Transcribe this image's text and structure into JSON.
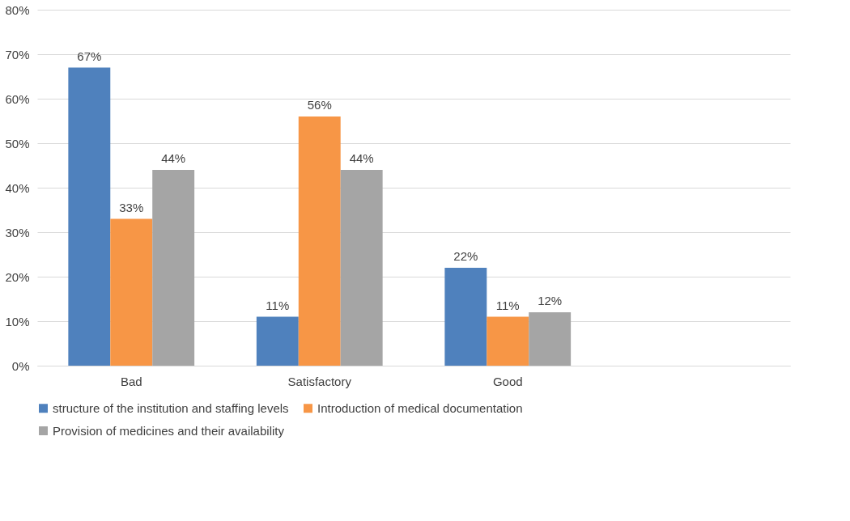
{
  "chart_data": {
    "type": "bar",
    "categories": [
      "Bad",
      "Satisfactory",
      "Good",
      null
    ],
    "series": [
      {
        "name": "structure of the institution and staffing levels",
        "color": "#4f81bd",
        "values": [
          67,
          11,
          22,
          null
        ],
        "value_labels": [
          "67%",
          "11%",
          "22%",
          null
        ]
      },
      {
        "name": "Introduction of medical documentation",
        "color": "#f79646",
        "values": [
          33,
          56,
          11,
          null
        ],
        "value_labels": [
          "33%",
          "56%",
          "11%",
          null
        ]
      },
      {
        "name": "Provision of medicines and their availability",
        "color": "#a5a5a5",
        "values": [
          44,
          44,
          12,
          null
        ],
        "value_labels": [
          "44%",
          "44%",
          "12%",
          null
        ]
      }
    ],
    "ylim": [
      0,
      80
    ],
    "yticks": [
      {
        "value": 0,
        "label": "0%"
      },
      {
        "value": 10,
        "label": "10%"
      },
      {
        "value": 20,
        "label": "20%"
      },
      {
        "value": 30,
        "label": "30%"
      },
      {
        "value": 40,
        "label": "40%"
      },
      {
        "value": 50,
        "label": "50%"
      },
      {
        "value": 60,
        "label": "60%"
      },
      {
        "value": 70,
        "label": "70%"
      },
      {
        "value": 80,
        "label": "80%"
      }
    ],
    "grid": "y",
    "legend": "bottom"
  }
}
